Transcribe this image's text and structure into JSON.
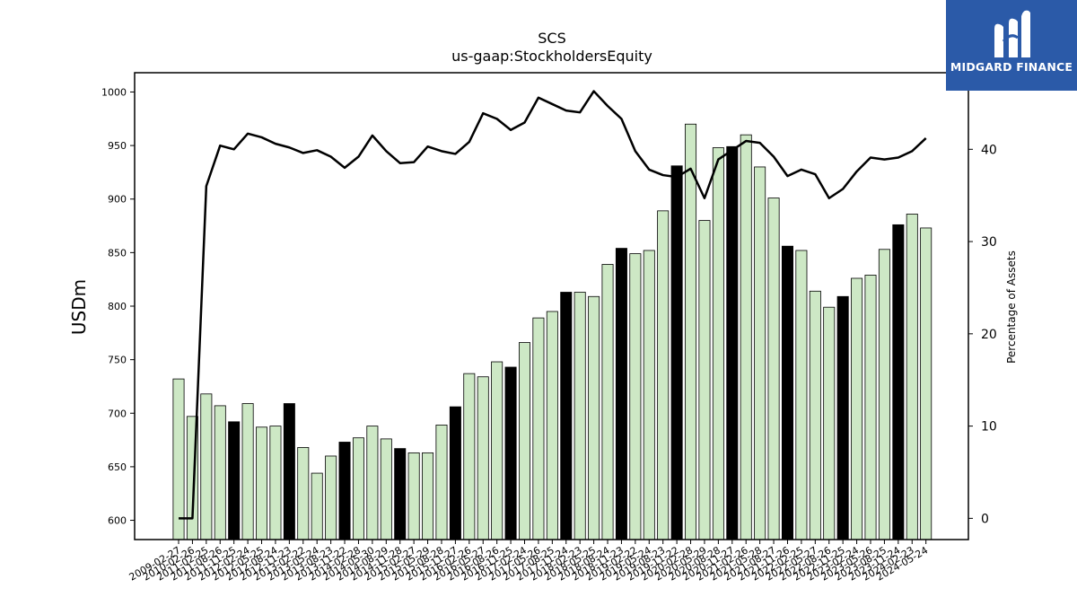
{
  "chart_data": {
    "type": "bar",
    "title": "SCS",
    "subtitle": "us-gaap:StockholdersEquity",
    "ylabel": "USDm",
    "y2label": "Percentage of Assets",
    "ylim": [
      582,
      1018
    ],
    "y2lim": [
      -2.3,
      48.3
    ],
    "yticks": [
      600,
      650,
      700,
      750,
      800,
      850,
      900,
      950,
      1000
    ],
    "y2ticks": [
      0,
      10,
      20,
      30,
      40
    ],
    "x_labels": [
      "2009-02-27",
      "2010-02-26",
      "2011-02-25",
      "2011-08-26",
      "2011-11-25",
      "2012-02-24",
      "2012-05-25",
      "2012-08-24",
      "2012-11-23",
      "2013-02-22",
      "2013-05-24",
      "2013-08-23",
      "2013-11-22",
      "2014-02-28",
      "2014-05-30",
      "2014-08-29",
      "2014-11-28",
      "2015-02-27",
      "2015-05-29",
      "2015-08-28",
      "2015-11-27",
      "2016-02-26",
      "2016-05-27",
      "2016-08-26",
      "2016-11-25",
      "2017-02-24",
      "2017-05-26",
      "2017-08-25",
      "2017-11-24",
      "2018-02-23",
      "2018-05-25",
      "2018-08-24",
      "2018-11-23",
      "2019-02-22",
      "2019-05-24",
      "2019-08-23",
      "2019-11-22",
      "2020-02-28",
      "2020-05-29",
      "2020-08-28",
      "2020-11-27",
      "2021-02-26",
      "2021-05-28",
      "2021-08-27",
      "2021-11-26",
      "2022-02-25",
      "2022-05-27",
      "2022-08-26",
      "2022-11-25",
      "2023-02-24",
      "2023-05-26",
      "2023-08-25",
      "2023-11-24",
      "2024-02-23",
      "2024-05-24"
    ],
    "bars": [
      732,
      697,
      718,
      707,
      692,
      709,
      687,
      688,
      709,
      668,
      644,
      660,
      673,
      677,
      688,
      676,
      667,
      663,
      663,
      689,
      706,
      737,
      734,
      748,
      743,
      766,
      789,
      795,
      813,
      813,
      809,
      839,
      854,
      849,
      852,
      889,
      931,
      970,
      880,
      948,
      949,
      960,
      930,
      901,
      856,
      852,
      814,
      799,
      809,
      826,
      829,
      853,
      876,
      886,
      873
    ],
    "highlight": [
      false,
      false,
      false,
      false,
      true,
      false,
      false,
      false,
      true,
      false,
      false,
      false,
      true,
      false,
      false,
      false,
      true,
      false,
      false,
      false,
      true,
      false,
      false,
      false,
      true,
      false,
      false,
      false,
      true,
      false,
      false,
      false,
      true,
      false,
      false,
      false,
      true,
      false,
      false,
      false,
      true,
      false,
      false,
      false,
      true,
      false,
      false,
      false,
      true,
      false,
      false,
      false,
      true,
      false,
      false
    ],
    "line": [
      0,
      0,
      36,
      40.4,
      40,
      41.7,
      41.3,
      40.6,
      40.2,
      39.6,
      39.9,
      39.2,
      38,
      39.2,
      41.5,
      39.8,
      38.5,
      38.6,
      40.3,
      39.8,
      39.5,
      40.8,
      43.9,
      43.3,
      42.1,
      42.9,
      45.6,
      44.9,
      44.2,
      44,
      46.3,
      44.7,
      43.3,
      39.8,
      37.8,
      37.2,
      37,
      37.9,
      34.7,
      38.9,
      39.9,
      40.9,
      40.7,
      39.2,
      37.1,
      37.8,
      37.3,
      34.7,
      35.7,
      37.6,
      39.1,
      38.9,
      39.1,
      39.8,
      41.2
    ],
    "colors": {
      "bar": "#cde8c5",
      "bar_highlight": "#000000",
      "line": "#000000"
    },
    "grid": false,
    "legend": "none"
  },
  "logo": {
    "text": "MIDGARD FINANCE",
    "bg": "#2b5aa8"
  }
}
